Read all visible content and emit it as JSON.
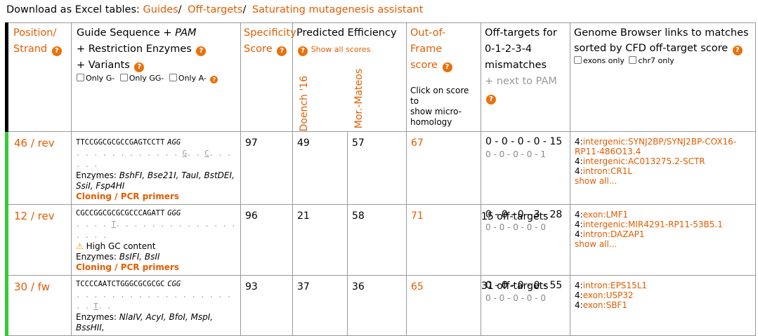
{
  "download": {
    "label": "Download as Excel tables:",
    "links": [
      "Guides",
      "Off-targets",
      "Saturating mutagenesis assistant"
    ]
  },
  "headers": {
    "position": [
      "Position/",
      "Strand"
    ],
    "guide": [
      "Guide Sequence + ",
      "PAM",
      "+ Restriction Enzymes",
      "+ Variants"
    ],
    "guide_options": [
      "Only G-",
      "Only GG-",
      "Only A-"
    ],
    "specificity": [
      "Specificity",
      "Score"
    ],
    "efficiency": "Predicted Efficiency",
    "show_all_scores": "Show all scores",
    "doench": "Doench '16",
    "mor_mateos": "Mor.-Mateos",
    "oof": [
      "Out-of-Frame",
      "score"
    ],
    "oof_note": [
      "Click on score to",
      "show micro-",
      "homology"
    ],
    "offtargets": [
      "Off-targets for",
      "0-1-2-3-4",
      "mismatches"
    ],
    "offtargets_pam": "+ next to PAM",
    "genome": [
      "Genome Browser links to matches",
      "sorted by CFD off-target score"
    ],
    "genome_options": [
      "exons only",
      "chr7 only"
    ]
  },
  "rows": [
    {
      "position": "46 / rev",
      "sequence": "TTCCGGCGCGCCGAGTCCTT",
      "pam": "AGG",
      "dots": [
        ". . . . . . . . . . . . ",
        "G",
        ". . ",
        "C",
        ". . .    . . ."
      ],
      "gc_warning": "",
      "enzymes_label": "Enzymes:",
      "enzymes": "BshFI, Bse21I, TauI, BstDEI, SsiI, Fsp4HI",
      "cloning": "Cloning / PCR primers",
      "specificity": "97",
      "doench": "49",
      "mor_mateos": "57",
      "oof": "67",
      "mismatch": "0 - 0 - 0 - 0 - 15",
      "mismatch_pam": "0 - 0 - 0 - 0 - 1",
      "offtarget_count": "15 off-targets",
      "genome_links": [
        {
          "pre": "4:",
          "text": "intergenic:SYNJ2BP/SYNJ2BP-COX16-RP11-486O13.4"
        },
        {
          "pre": "4:",
          "text": "intergenic:AC013275.2-SCTR"
        },
        {
          "pre": "4:",
          "text": "intron:CR1L"
        }
      ],
      "show_all": "show all..."
    },
    {
      "position": "12 / rev",
      "sequence": "CGCCGGCGCGCGCCCAGATT",
      "pam": "GGG",
      "dots": [
        ". . . . ",
        "T",
        ". . . . . . . . . . . . . . .    . . ."
      ],
      "gc_warning": "High GC content",
      "enzymes_label": "Enzymes:",
      "enzymes": "BsIFI, BsII",
      "cloning": "Cloning / PCR primers",
      "specificity": "96",
      "doench": "21",
      "mor_mateos": "58",
      "oof": "71",
      "mismatch": "0 - 0 - 0 - 3 - 28",
      "mismatch_pam": "0 - 0 - 0 - 0 - 0",
      "offtarget_count": "31 off-targets",
      "genome_links": [
        {
          "pre": "4:",
          "text": "exon:LMF1"
        },
        {
          "pre": "4:",
          "text": "intergenic:MIR4291-RP11-53B5.1"
        },
        {
          "pre": "4:",
          "text": "intron:DAZAP1"
        }
      ],
      "show_all": "show all..."
    },
    {
      "position": "30 / fw",
      "sequence": "TCCCCAATCTGGGCGCGCGC",
      "pam": "CGG",
      "dots": [
        ". . . . . . . . . . . . . . . . . . . .    ",
        "T",
        ". ."
      ],
      "gc_warning": "",
      "enzymes_label": "Enzymes:",
      "enzymes": "NlaIV, AcyI, BfoI, MspI, BssHII,",
      "cloning": "",
      "specificity": "93",
      "doench": "37",
      "mor_mateos": "36",
      "oof": "65",
      "mismatch": "0 - 0 - 0 - 0 - 55",
      "mismatch_pam": "0 - 0 - 0 - 0 - 0",
      "offtarget_count": "",
      "genome_links": [
        {
          "pre": "4:",
          "text": "intron:EPS15L1"
        },
        {
          "pre": "4:",
          "text": "exon:USP32"
        },
        {
          "pre": "4:",
          "text": "exon:SBF1"
        }
      ],
      "show_all": ""
    }
  ]
}
